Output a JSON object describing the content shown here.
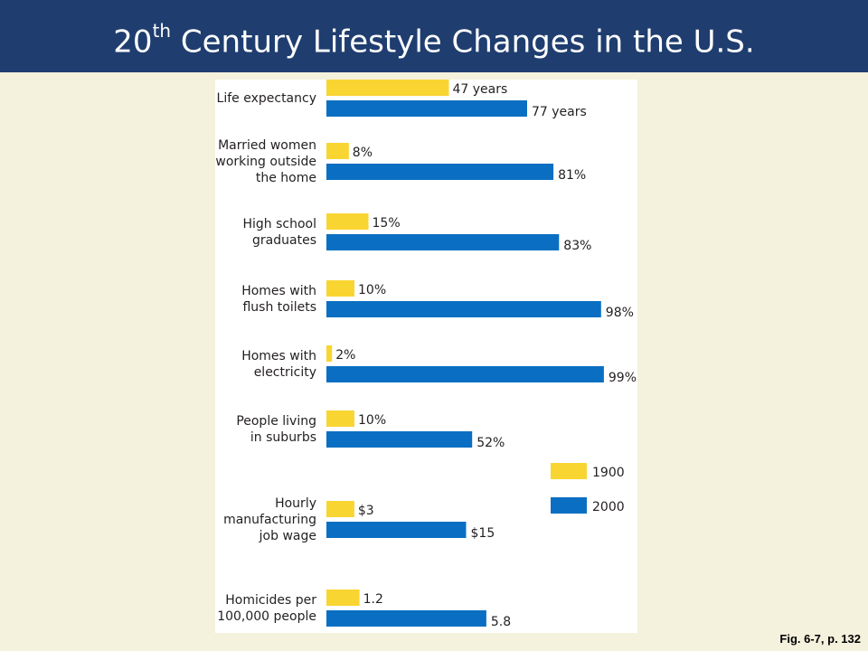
{
  "slide": {
    "title_main": "20",
    "title_sup": "th",
    "title_rest": " Century Lifestyle Changes in the U.S.",
    "caption": "Fig. 6-7, p. 132"
  },
  "colors": {
    "header": "#1f3e6f",
    "background": "#f4f1dd",
    "series_1900": "#f9d532",
    "series_2000": "#0a6fc2"
  },
  "chart_data": {
    "type": "bar",
    "orientation": "horizontal",
    "categories": [
      [
        "Life expectancy"
      ],
      [
        "Married women",
        "working outside",
        "the home"
      ],
      [
        "High school",
        "graduates"
      ],
      [
        "Homes with",
        "flush toilets"
      ],
      [
        "Homes with",
        "electricity"
      ],
      [
        "People living",
        "in suburbs"
      ],
      [
        "Hourly",
        "manufacturing",
        "job wage"
      ],
      [
        "Homicides per",
        "100,000 people"
      ]
    ],
    "series": [
      {
        "name": "1900",
        "values": [
          47,
          8,
          15,
          10,
          2,
          10,
          3,
          1.2
        ],
        "labels": [
          "47 years",
          "8%",
          "15%",
          "10%",
          "2%",
          "10%",
          "$3",
          "1.2"
        ]
      },
      {
        "name": "2000",
        "values": [
          77,
          81,
          83,
          98,
          99,
          52,
          15,
          5.8
        ],
        "labels": [
          "77 years",
          "81%",
          "83%",
          "98%",
          "99%",
          "52%",
          "$15",
          "5.8"
        ]
      }
    ],
    "legend": {
      "position": "right",
      "entries": [
        "1900",
        "2000"
      ]
    }
  }
}
